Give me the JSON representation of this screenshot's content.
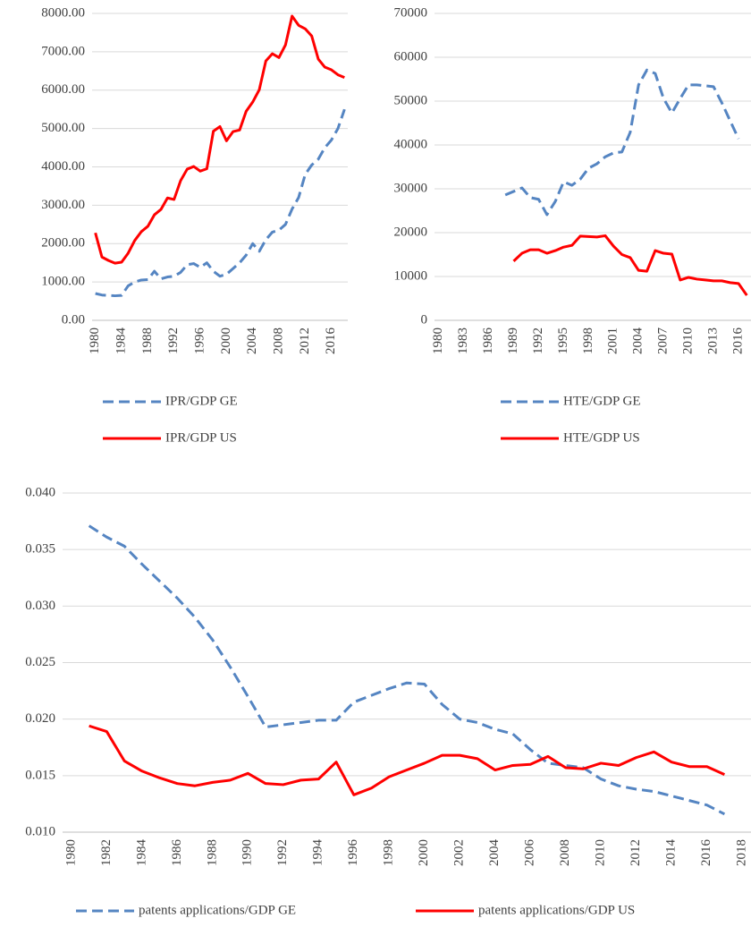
{
  "chart_data": [
    {
      "type": "line",
      "categories": [
        "1980",
        null,
        null,
        null,
        "1984",
        null,
        null,
        null,
        "1988",
        null,
        null,
        null,
        "1992",
        null,
        null,
        null,
        "1996",
        null,
        null,
        null,
        "2000",
        null,
        null,
        null,
        "2004",
        null,
        null,
        null,
        "2008",
        null,
        null,
        null,
        "2012",
        null,
        null,
        null,
        "2016",
        null,
        null
      ],
      "series": [
        {
          "name": "IPR/GDP GE",
          "color": "#5585c2",
          "line_style": "dashed",
          "values": [
            700,
            660,
            650,
            640,
            650,
            900,
            1000,
            1050,
            1060,
            1280,
            1080,
            1130,
            1150,
            1250,
            1450,
            1480,
            1380,
            1500,
            1280,
            1150,
            1200,
            1350,
            1500,
            1700,
            2000,
            1800,
            2100,
            2300,
            2350,
            2500,
            2900,
            3200,
            3800,
            4050,
            4200,
            4500,
            4700,
            5000,
            5500
          ]
        },
        {
          "name": "IPR/GDP US",
          "color": "#ff0000",
          "line_style": "solid",
          "values": [
            2280,
            1650,
            1560,
            1490,
            1515,
            1750,
            2080,
            2310,
            2450,
            2750,
            2890,
            3190,
            3150,
            3640,
            3940,
            4010,
            3890,
            3950,
            4930,
            5050,
            4680,
            4920,
            4960,
            5450,
            5690,
            6010,
            6760,
            6950,
            6850,
            7180,
            7930,
            7690,
            7600,
            7410,
            6810,
            6600,
            6530,
            6400,
            6330
          ]
        }
      ],
      "ylim": [
        0,
        8000
      ],
      "yticks": [
        {
          "value": 0,
          "label": "0.00"
        },
        {
          "value": 1000,
          "label": "1000.00"
        },
        {
          "value": 2000,
          "label": "2000.00"
        },
        {
          "value": 3000,
          "label": "3000.00"
        },
        {
          "value": 4000,
          "label": "4000.00"
        },
        {
          "value": 5000,
          "label": "5000.00"
        },
        {
          "value": 6000,
          "label": "6000.00"
        },
        {
          "value": 7000,
          "label": "7000.00"
        },
        {
          "value": 8000,
          "label": "8000.00"
        }
      ],
      "grid": true,
      "legend": "bottom"
    },
    {
      "type": "line",
      "categories": [
        "1980",
        null,
        null,
        "1983",
        null,
        null,
        "1986",
        null,
        null,
        "1989",
        null,
        null,
        "1992",
        null,
        null,
        "1995",
        null,
        null,
        "1998",
        null,
        null,
        "2001",
        null,
        null,
        "2004",
        null,
        null,
        "2007",
        null,
        null,
        "2010",
        null,
        null,
        "2013",
        null,
        null,
        "2016",
        null
      ],
      "series": [
        {
          "name": "HTE/GDP GE",
          "color": "#5585c2",
          "line_style": "dashed",
          "values": [
            null,
            null,
            null,
            null,
            null,
            null,
            null,
            null,
            28600,
            29400,
            30200,
            28000,
            27600,
            24100,
            27100,
            31600,
            30800,
            32200,
            34700,
            35700,
            37300,
            38200,
            38400,
            42900,
            53700,
            57100,
            56300,
            50600,
            47300,
            50600,
            53700,
            53700,
            53500,
            53300,
            49600,
            45500,
            41400,
            null
          ]
        },
        {
          "name": "HTE/GDP US",
          "color": "#ff0000",
          "line_style": "solid",
          "values": [
            null,
            null,
            null,
            null,
            null,
            null,
            null,
            null,
            null,
            13500,
            15300,
            16100,
            16100,
            15300,
            15900,
            16700,
            17100,
            19200,
            19100,
            19000,
            19300,
            16900,
            15000,
            14300,
            11400,
            11200,
            15900,
            15300,
            15100,
            9200,
            9800,
            9400,
            9200,
            9000,
            9000,
            8600,
            8400,
            5700
          ]
        }
      ],
      "ylim": [
        0,
        70000
      ],
      "yticks": [
        0,
        10000,
        20000,
        30000,
        40000,
        50000,
        60000,
        70000
      ],
      "grid": true,
      "legend": "bottom"
    },
    {
      "type": "line",
      "categories": [
        "1980",
        null,
        "1982",
        null,
        "1984",
        null,
        "1986",
        null,
        "1988",
        null,
        "1990",
        null,
        "1992",
        null,
        "1994",
        null,
        "1996",
        null,
        "1998",
        null,
        "2000",
        null,
        "2002",
        null,
        "2004",
        null,
        "2006",
        null,
        "2008",
        null,
        "2010",
        null,
        "2012",
        null,
        "2014",
        null,
        "2016",
        null,
        "2018"
      ],
      "series": [
        {
          "name": "patents applications/GDP GE",
          "color": "#5585c2",
          "line_style": "dashed",
          "values": [
            null,
            0.0371,
            0.0361,
            0.0353,
            0.0337,
            0.0322,
            0.0307,
            0.029,
            0.027,
            0.0246,
            0.022,
            0.0193,
            0.0195,
            0.0197,
            0.0199,
            0.0199,
            0.0215,
            0.0221,
            0.0227,
            0.0232,
            0.0231,
            0.0213,
            0.02,
            0.0197,
            0.0191,
            0.0187,
            0.0173,
            0.0161,
            0.0159,
            0.0157,
            0.0147,
            0.0141,
            0.0138,
            0.0136,
            0.0132,
            0.0128,
            0.0124,
            0.0116,
            null
          ]
        },
        {
          "name": "patents applications/GDP US",
          "color": "#ff0000",
          "line_style": "solid",
          "values": [
            null,
            0.0194,
            0.0189,
            0.0163,
            0.0154,
            0.0148,
            0.0143,
            0.0141,
            0.0144,
            0.0146,
            0.0152,
            0.0143,
            0.0142,
            0.0146,
            0.0147,
            0.0162,
            0.0133,
            0.0139,
            0.0149,
            0.0155,
            0.0161,
            0.0168,
            0.0168,
            0.0165,
            0.0155,
            0.0159,
            0.016,
            0.0167,
            0.0157,
            0.0156,
            0.0161,
            0.0159,
            0.0166,
            0.0171,
            0.0162,
            0.0158,
            0.0158,
            0.0151,
            null
          ]
        }
      ],
      "ylim": [
        0.01,
        0.04
      ],
      "yticks": [
        {
          "value": 0.01,
          "label": "0.010"
        },
        {
          "value": 0.015,
          "label": "0.015"
        },
        {
          "value": 0.02,
          "label": "0.020"
        },
        {
          "value": 0.025,
          "label": "0.025"
        },
        {
          "value": 0.03,
          "label": "0.030"
        },
        {
          "value": 0.035,
          "label": "0.035"
        },
        {
          "value": 0.04,
          "label": "0.040"
        }
      ],
      "grid": true,
      "legend": "bottom"
    }
  ]
}
